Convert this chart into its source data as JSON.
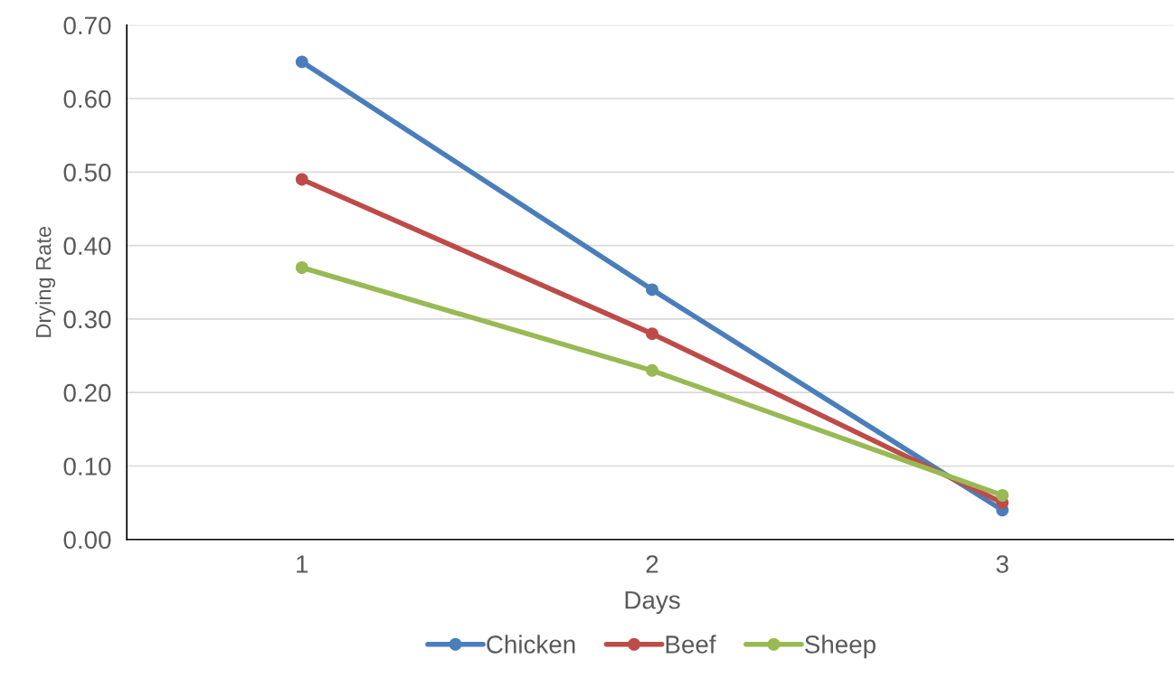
{
  "chart_data": {
    "type": "line",
    "xlabel": "Days",
    "ylabel": "Drying Rate",
    "categories": [
      "1",
      "2",
      "3"
    ],
    "series": [
      {
        "name": "Chicken",
        "color": "#4a7ebb",
        "values": [
          0.65,
          0.34,
          0.04
        ]
      },
      {
        "name": "Beef",
        "color": "#be4b48",
        "values": [
          0.49,
          0.28,
          0.05
        ]
      },
      {
        "name": "Sheep",
        "color": "#98b954",
        "values": [
          0.37,
          0.23,
          0.06
        ]
      }
    ],
    "ylim": [
      0,
      0.7
    ],
    "yticks": [
      {
        "value": 0,
        "label": "0.00"
      },
      {
        "value": 0.1,
        "label": "0.10"
      },
      {
        "value": 0.2,
        "label": "0.20"
      },
      {
        "value": 0.3,
        "label": "0.30"
      },
      {
        "value": 0.4,
        "label": "0.40"
      },
      {
        "value": 0.5,
        "label": "0.50"
      },
      {
        "value": 0.6,
        "label": "0.60"
      },
      {
        "value": 0.7,
        "label": "0.70"
      }
    ],
    "grid": "y",
    "legend": "bottom",
    "marker": "circle",
    "line_style": "solid"
  }
}
